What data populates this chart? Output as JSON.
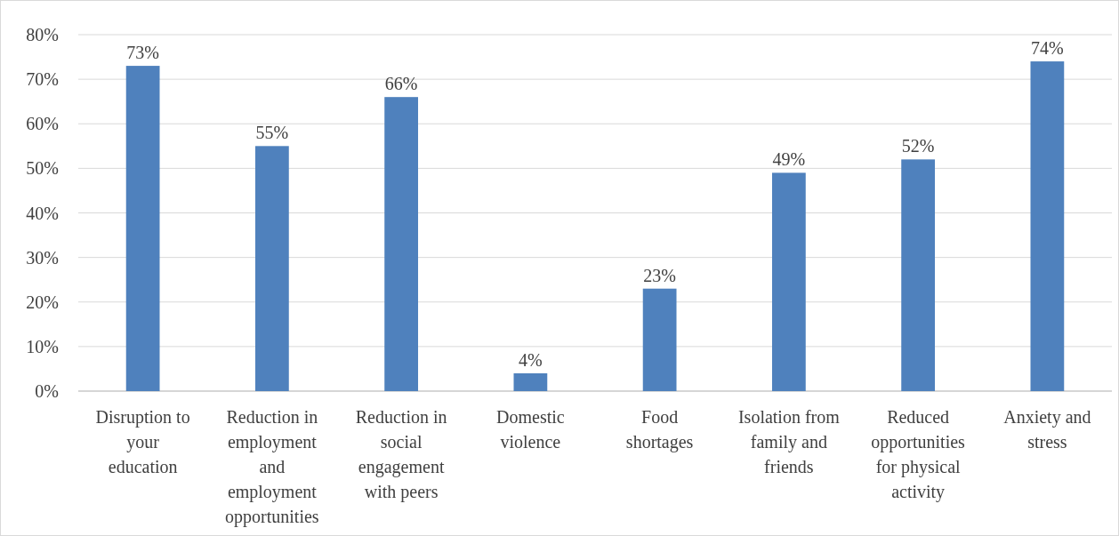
{
  "chart_data": {
    "type": "bar",
    "categories": [
      "Disruption to your education",
      "Reduction in employment and employment opportunities",
      "Reduction in social engagement with peers",
      "Domestic violence",
      "Food shortages",
      "Isolation from family and friends",
      "Reduced opportunities for physical activity",
      "Anxiety and stress"
    ],
    "values": [
      73,
      55,
      66,
      4,
      23,
      49,
      52,
      74
    ],
    "value_labels": [
      "73%",
      "55%",
      "66%",
      "4%",
      "23%",
      "49%",
      "52%",
      "74%"
    ],
    "color": "#4f81bd",
    "ylim": [
      0,
      80
    ],
    "yticks": [
      {
        "value": 0,
        "label": "0%"
      },
      {
        "value": 10,
        "label": "10%"
      },
      {
        "value": 20,
        "label": "20%"
      },
      {
        "value": 30,
        "label": "30%"
      },
      {
        "value": 40,
        "label": "40%"
      },
      {
        "value": 50,
        "label": "50%"
      },
      {
        "value": 60,
        "label": "60%"
      },
      {
        "value": 70,
        "label": "70%"
      },
      {
        "value": 80,
        "label": "80%"
      }
    ],
    "grid": "y"
  }
}
